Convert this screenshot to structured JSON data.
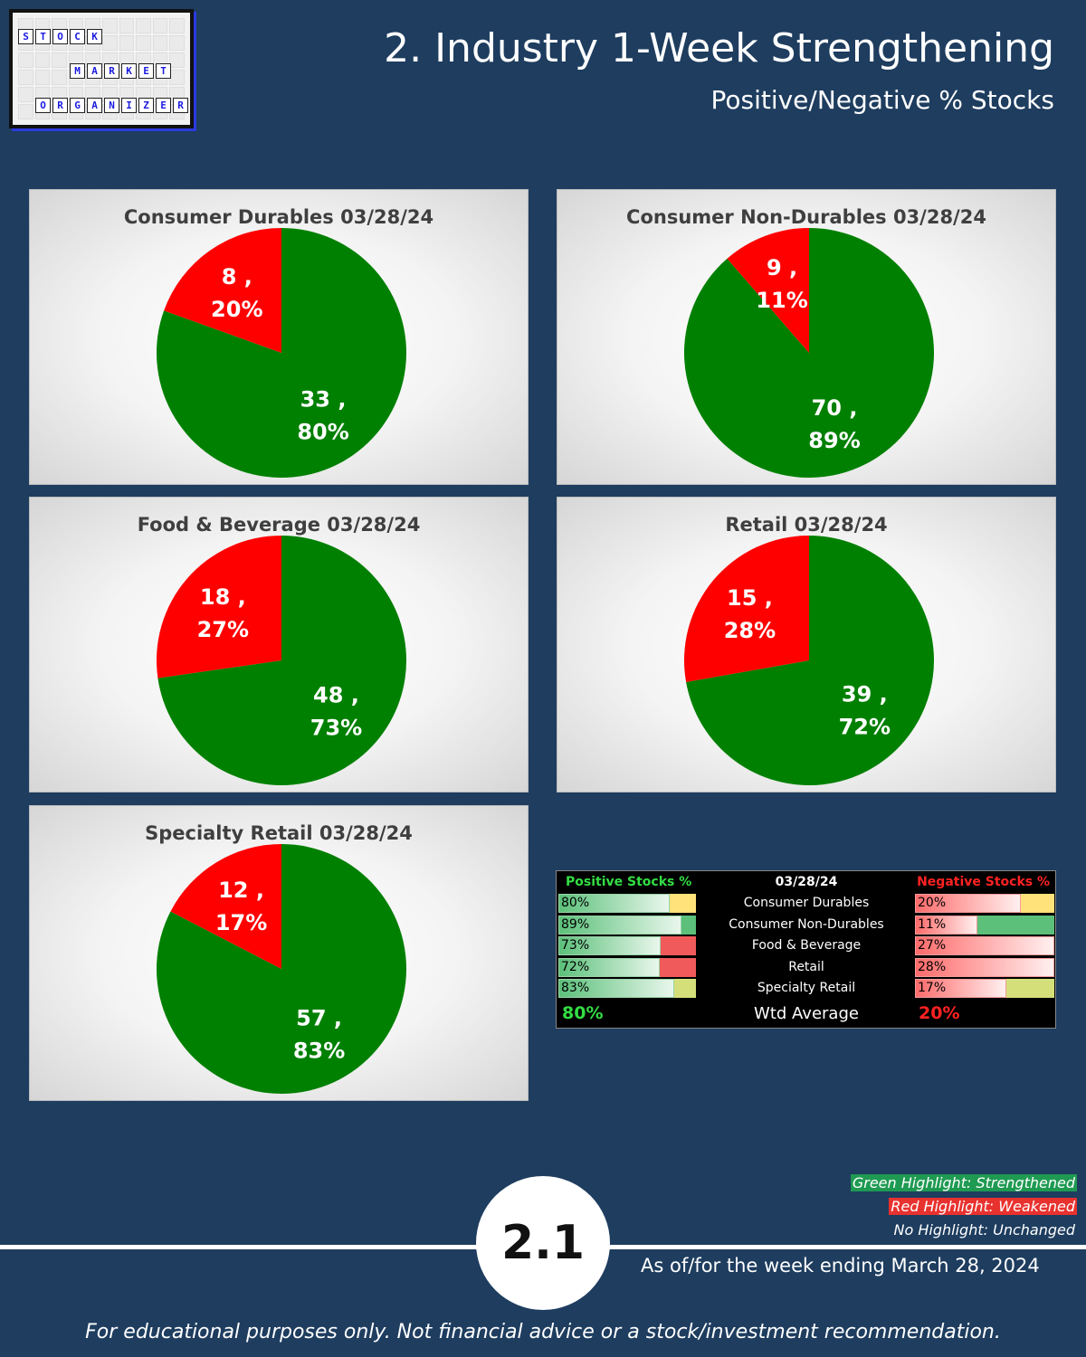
{
  "logo": {
    "rows": [
      {
        "letters": [
          "S",
          "T",
          "O",
          "C",
          "K"
        ]
      },
      {
        "letters": [
          "M",
          "A",
          "R",
          "K",
          "E",
          "T"
        ]
      },
      {
        "letters": [
          "O",
          "R",
          "G",
          "A",
          "N",
          "I",
          "Z",
          "E",
          "R"
        ]
      }
    ]
  },
  "header": {
    "title": "2. Industry 1-Week Strengthening",
    "subtitle": "Positive/Negative % Stocks"
  },
  "colors": {
    "background": "#1e3d5f",
    "positive": "#008000",
    "negative": "#ff0000",
    "strengthened": "#1f9a52",
    "weakened": "#e8322f"
  },
  "chart_data": [
    {
      "type": "pie",
      "title": "Consumer Durables 03/28/24",
      "slices": [
        {
          "label": "Negative",
          "value": 8,
          "percent": "20%",
          "color": "#ff0000"
        },
        {
          "label": "Positive",
          "value": 33,
          "percent": "80%",
          "color": "#008000"
        }
      ]
    },
    {
      "type": "pie",
      "title": "Consumer Non-Durables 03/28/24",
      "slices": [
        {
          "label": "Negative",
          "value": 9,
          "percent": "11%",
          "color": "#ff0000"
        },
        {
          "label": "Positive",
          "value": 70,
          "percent": "89%",
          "color": "#008000"
        }
      ]
    },
    {
      "type": "pie",
      "title": "Food & Beverage 03/28/24",
      "slices": [
        {
          "label": "Negative",
          "value": 18,
          "percent": "27%",
          "color": "#ff0000"
        },
        {
          "label": "Positive",
          "value": 48,
          "percent": "73%",
          "color": "#008000"
        }
      ]
    },
    {
      "type": "pie",
      "title": "Retail 03/28/24",
      "slices": [
        {
          "label": "Negative",
          "value": 15,
          "percent": "28%",
          "color": "#ff0000"
        },
        {
          "label": "Positive",
          "value": 39,
          "percent": "72%",
          "color": "#008000"
        }
      ]
    },
    {
      "type": "pie",
      "title": "Specialty Retail 03/28/24",
      "slices": [
        {
          "label": "Negative",
          "value": 12,
          "percent": "17%",
          "color": "#ff0000"
        },
        {
          "label": "Positive",
          "value": 57,
          "percent": "83%",
          "color": "#008000"
        }
      ]
    },
    {
      "type": "table",
      "header": {
        "positive": "Positive Stocks %",
        "date": "03/28/24",
        "negative": "Negative Stocks %"
      },
      "rows": [
        {
          "industry": "Consumer Durables",
          "positive": "80%",
          "negative": "20%",
          "pos_value": 0.8,
          "neg_value": 0.2,
          "pos_highlight": "#ffe27a",
          "neg_highlight": "#ffe27a"
        },
        {
          "industry": "Consumer Non-Durables",
          "positive": "89%",
          "negative": "11%",
          "pos_value": 0.89,
          "neg_value": 0.11,
          "pos_highlight": "#5cbf7a",
          "neg_highlight": "#5cbf7a"
        },
        {
          "industry": "Food & Beverage",
          "positive": "73%",
          "negative": "27%",
          "pos_value": 0.73,
          "neg_value": 0.27,
          "pos_highlight": "#f05a5a",
          "neg_highlight": "#f05a5a"
        },
        {
          "industry": "Retail",
          "positive": "72%",
          "negative": "28%",
          "pos_value": 0.72,
          "neg_value": 0.28,
          "pos_highlight": "#f05a5a",
          "neg_highlight": "#f05a5a"
        },
        {
          "industry": "Specialty Retail",
          "positive": "83%",
          "negative": "17%",
          "pos_value": 0.83,
          "neg_value": 0.17,
          "pos_highlight": "#d4df7a",
          "neg_highlight": "#d4df7a"
        }
      ],
      "average": {
        "label": "Wtd Average",
        "positive": "80%",
        "negative": "20%"
      }
    }
  ],
  "legend": {
    "green": "Green Highlight: Strengthened",
    "red": "Red Highlight: Weakened",
    "none": "No Highlight: Unchanged"
  },
  "footer": {
    "badge": "2.1",
    "as_of": "As of/for the week ending March 28, 2024",
    "disclaimer": "For educational purposes only. Not financial advice or a stock/investment recommendation."
  }
}
